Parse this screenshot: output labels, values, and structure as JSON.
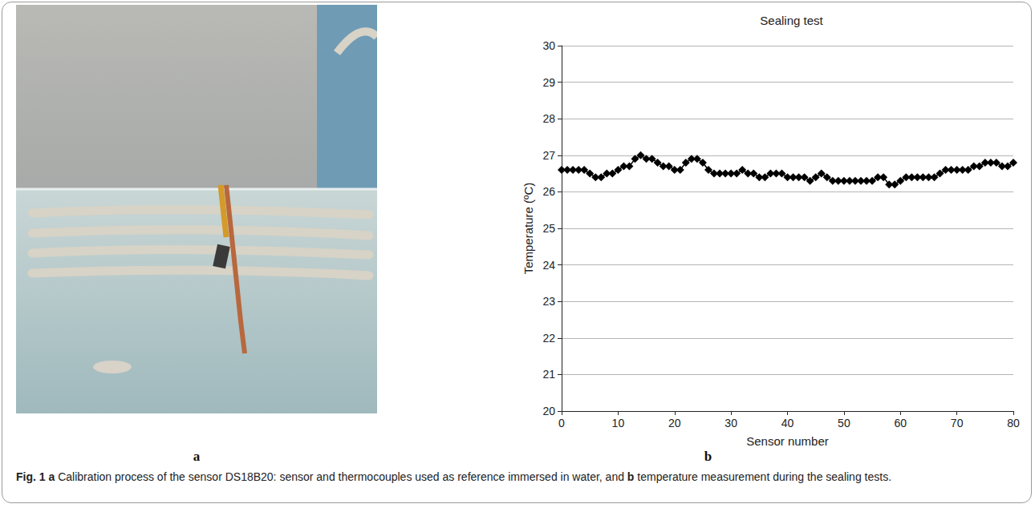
{
  "chart_data": {
    "type": "line",
    "title": "Sealing test",
    "x_label": "Sensor number",
    "y_label": "Temperature (ºC)",
    "x": [
      0,
      1,
      2,
      3,
      4,
      5,
      6,
      7,
      8,
      9,
      10,
      11,
      12,
      13,
      14,
      15,
      16,
      17,
      18,
      19,
      20,
      21,
      22,
      23,
      24,
      25,
      26,
      27,
      28,
      29,
      30,
      31,
      32,
      33,
      34,
      35,
      36,
      37,
      38,
      39,
      40,
      41,
      42,
      43,
      44,
      45,
      46,
      47,
      48,
      49,
      50,
      51,
      52,
      53,
      54,
      55,
      56,
      57,
      58,
      59,
      60,
      61,
      62,
      63,
      64,
      65,
      66,
      67,
      68,
      69,
      70,
      71,
      72,
      73,
      74,
      75,
      76,
      77,
      78,
      79,
      80
    ],
    "values": [
      26.6,
      26.6,
      26.6,
      26.6,
      26.6,
      26.5,
      26.4,
      26.4,
      26.5,
      26.5,
      26.6,
      26.7,
      26.7,
      26.9,
      27.0,
      26.9,
      26.9,
      26.8,
      26.7,
      26.7,
      26.6,
      26.6,
      26.8,
      26.9,
      26.9,
      26.8,
      26.6,
      26.5,
      26.5,
      26.5,
      26.5,
      26.5,
      26.6,
      26.5,
      26.5,
      26.4,
      26.4,
      26.5,
      26.5,
      26.5,
      26.4,
      26.4,
      26.4,
      26.4,
      26.3,
      26.4,
      26.5,
      26.4,
      26.3,
      26.3,
      26.3,
      26.3,
      26.3,
      26.3,
      26.3,
      26.3,
      26.4,
      26.4,
      26.2,
      26.2,
      26.3,
      26.4,
      26.4,
      26.4,
      26.4,
      26.4,
      26.4,
      26.5,
      26.6,
      26.6,
      26.6,
      26.6,
      26.6,
      26.7,
      26.7,
      26.8,
      26.8,
      26.8,
      26.7,
      26.7,
      26.8
    ],
    "color": "#000000",
    "marker": "diamond",
    "line_style": "solid",
    "xlim": [
      0,
      80
    ],
    "xticks": [
      0,
      10,
      20,
      30,
      40,
      50,
      60,
      70,
      80
    ],
    "ylim": [
      20,
      30
    ],
    "yticks": [
      20,
      21,
      22,
      23,
      24,
      25,
      26,
      27,
      28,
      29,
      30
    ],
    "grid": true
  },
  "panel_labels": [
    "a",
    "b"
  ],
  "caption": {
    "figure": "Fig. 1",
    "segments": [
      {
        "label": "a",
        "text": "Calibration process of the sensor DS18B20: sensor and thermocouples used as reference immersed in water, and"
      },
      {
        "label": "b",
        "text": "temperature measurement during the sealing tests."
      }
    ]
  }
}
